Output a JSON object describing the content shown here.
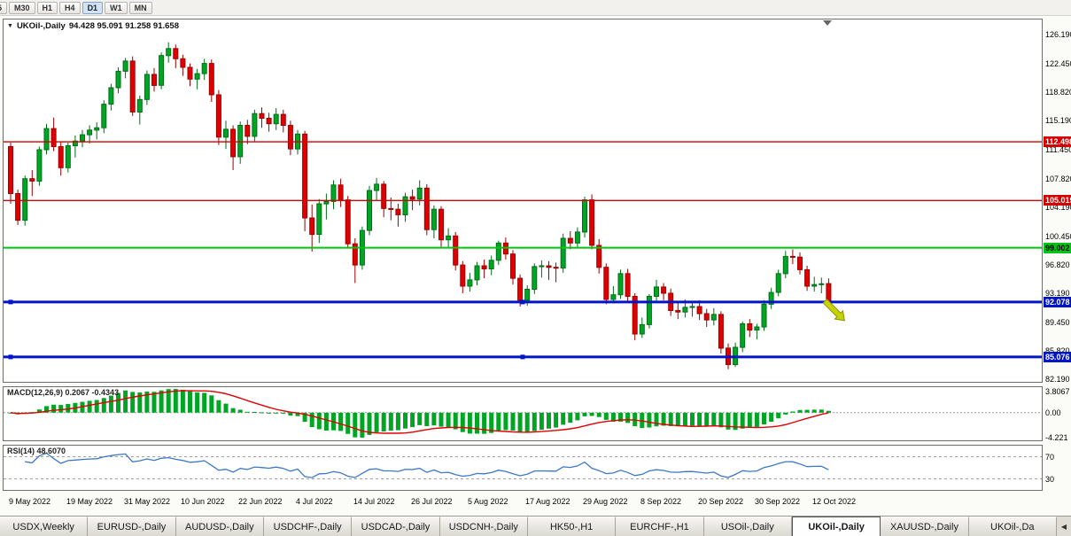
{
  "toolbar": {
    "period_buttons": [
      "5",
      "M30",
      "H1",
      "H4",
      "D1",
      "W1",
      "MN"
    ],
    "active_period": "D1"
  },
  "main_chart": {
    "collapse_icon": "▼",
    "title_symbol": "UKOil-,Daily",
    "title_ohlc": "94.428 95.091 91.258 91.658",
    "price_axis_labels": [
      "126.190",
      "122.450",
      "118.820",
      "115.190",
      "111.450",
      "107.820",
      "104.190",
      "100.450",
      "96.820",
      "93.190",
      "89.450",
      "85.820",
      "82.190"
    ],
    "hlines": [
      {
        "price": 112.498,
        "label": "112.498",
        "color": "#d40000",
        "width": 1.4,
        "text": "#fff",
        "handles": false
      },
      {
        "price": 105.019,
        "label": "105.019",
        "color": "#d40000",
        "width": 1.4,
        "text": "#fff",
        "handles": false
      },
      {
        "price": 99.002,
        "label": "99.002",
        "color": "#00c414",
        "width": 2,
        "text": "#000",
        "handles": false
      },
      {
        "price": 92.078,
        "label": "92.078",
        "color": "#0014c8",
        "width": 3,
        "text": "#fff",
        "handles": true
      },
      {
        "price": 85.076,
        "label": "85.076",
        "color": "#0014c8",
        "width": 3,
        "text": "#fff",
        "handles": true
      }
    ],
    "arrow": {
      "index": 113.5,
      "price": 92.2,
      "color": "#c6d300",
      "outline": "#85920a"
    },
    "up_color": "#00a524",
    "up_border": "#006e18",
    "down_color": "#e00000",
    "down_border": "#9c0000"
  },
  "chart_data": {
    "type": "candlestick",
    "symbol": "UKOil-,Daily",
    "timeframe": "Daily",
    "y_range": [
      82.19,
      126.19
    ],
    "x_tick_indices": [
      0,
      8,
      16,
      24,
      32,
      40,
      48,
      56,
      64,
      72,
      80,
      88,
      96,
      104,
      112
    ],
    "x_tick_labels": [
      "9 May 2022",
      "19 May 2022",
      "31 May 2022",
      "10 Jun 2022",
      "22 Jun 2022",
      "4 Jul 2022",
      "14 Jul 2022",
      "26 Jul 2022",
      "5 Aug 2022",
      "17 Aug 2022",
      "29 Aug 2022",
      "8 Sep 2022",
      "20 Sep 2022",
      "30 Sep 2022",
      "12 Oct 2022"
    ],
    "ohlc": [
      [
        111.9,
        112.4,
        104.6,
        105.9
      ],
      [
        105.9,
        106.4,
        101.9,
        102.5
      ],
      [
        102.5,
        108.2,
        101.8,
        107.8
      ],
      [
        107.8,
        108.9,
        105.6,
        107.5
      ],
      [
        107.5,
        111.9,
        106.9,
        111.5
      ],
      [
        111.5,
        114.8,
        110.9,
        114.2
      ],
      [
        114.2,
        115.6,
        111.3,
        111.9
      ],
      [
        111.9,
        112.5,
        108.2,
        109.2
      ],
      [
        109.2,
        112.4,
        108.6,
        112.0
      ],
      [
        112.0,
        113.3,
        110.5,
        112.6
      ],
      [
        112.6,
        114.0,
        111.8,
        113.4
      ],
      [
        113.4,
        114.6,
        112.3,
        114.0
      ],
      [
        114.0,
        115.0,
        112.8,
        114.3
      ],
      [
        114.3,
        117.8,
        113.6,
        117.3
      ],
      [
        117.3,
        119.9,
        116.5,
        119.4
      ],
      [
        119.4,
        122.0,
        118.7,
        121.5
      ],
      [
        121.5,
        123.2,
        120.6,
        122.8
      ],
      [
        122.8,
        123.4,
        115.8,
        116.3
      ],
      [
        116.3,
        118.4,
        114.7,
        117.9
      ],
      [
        117.9,
        121.6,
        117.2,
        121.1
      ],
      [
        121.1,
        121.9,
        118.9,
        119.7
      ],
      [
        119.7,
        123.9,
        119.2,
        123.5
      ],
      [
        123.5,
        125.2,
        122.6,
        124.4
      ],
      [
        124.4,
        124.9,
        121.9,
        123.1
      ],
      [
        123.1,
        123.6,
        120.9,
        122.0
      ],
      [
        122.0,
        122.5,
        119.6,
        120.5
      ],
      [
        120.5,
        121.8,
        119.2,
        121.2
      ],
      [
        121.2,
        123.1,
        120.4,
        122.5
      ],
      [
        122.5,
        123.0,
        117.6,
        118.5
      ],
      [
        118.5,
        119.1,
        112.1,
        113.1
      ],
      [
        113.1,
        115.2,
        111.6,
        114.1
      ],
      [
        114.1,
        114.6,
        108.9,
        110.6
      ],
      [
        110.6,
        115.1,
        109.7,
        114.6
      ],
      [
        114.6,
        115.3,
        112.2,
        113.2
      ],
      [
        113.2,
        116.6,
        112.5,
        116.1
      ],
      [
        116.1,
        116.9,
        114.3,
        115.5
      ],
      [
        115.5,
        116.2,
        113.8,
        114.8
      ],
      [
        114.8,
        116.8,
        114.0,
        116.0
      ],
      [
        116.0,
        116.6,
        113.7,
        114.6
      ],
      [
        114.6,
        115.2,
        110.8,
        111.6
      ],
      [
        111.6,
        114.0,
        110.9,
        113.5
      ],
      [
        113.5,
        113.9,
        101.1,
        102.8
      ],
      [
        102.8,
        104.5,
        98.5,
        100.7
      ],
      [
        100.7,
        105.2,
        99.6,
        104.6
      ],
      [
        104.6,
        105.9,
        102.6,
        104.9
      ],
      [
        104.9,
        107.6,
        103.9,
        107.0
      ],
      [
        107.0,
        107.8,
        104.2,
        105.1
      ],
      [
        105.1,
        105.6,
        98.9,
        99.5
      ],
      [
        99.5,
        100.2,
        94.5,
        96.8
      ],
      [
        96.8,
        101.7,
        96.2,
        101.2
      ],
      [
        101.2,
        106.9,
        100.6,
        106.3
      ],
      [
        106.3,
        107.9,
        105.1,
        107.1
      ],
      [
        107.1,
        107.5,
        102.9,
        104.0
      ],
      [
        104.0,
        105.4,
        102.5,
        103.9
      ],
      [
        103.9,
        104.6,
        101.7,
        103.2
      ],
      [
        103.2,
        106.0,
        102.3,
        105.5
      ],
      [
        105.5,
        106.4,
        103.8,
        105.2
      ],
      [
        105.2,
        107.6,
        104.4,
        106.6
      ],
      [
        106.6,
        107.1,
        100.6,
        101.3
      ],
      [
        101.3,
        104.4,
        100.2,
        103.9
      ],
      [
        103.9,
        104.3,
        99.1,
        100.0
      ],
      [
        100.0,
        101.5,
        98.9,
        100.5
      ],
      [
        100.5,
        101.0,
        96.1,
        96.8
      ],
      [
        96.8,
        97.3,
        93.2,
        94.1
      ],
      [
        94.1,
        95.8,
        93.4,
        94.9
      ],
      [
        94.9,
        97.2,
        94.2,
        96.7
      ],
      [
        96.7,
        97.5,
        95.1,
        96.3
      ],
      [
        96.3,
        98.0,
        95.5,
        97.4
      ],
      [
        97.4,
        99.9,
        96.8,
        99.6
      ],
      [
        99.6,
        100.3,
        97.5,
        98.2
      ],
      [
        98.2,
        98.7,
        94.3,
        95.1
      ],
      [
        95.1,
        95.6,
        91.5,
        92.3
      ],
      [
        92.3,
        94.2,
        91.6,
        93.7
      ],
      [
        93.7,
        97.0,
        93.1,
        96.6
      ],
      [
        96.6,
        97.4,
        95.2,
        96.7
      ],
      [
        96.7,
        97.3,
        94.9,
        96.5
      ],
      [
        96.5,
        97.1,
        94.6,
        96.4
      ],
      [
        96.4,
        100.8,
        95.8,
        100.2
      ],
      [
        100.2,
        101.1,
        98.8,
        99.6
      ],
      [
        99.6,
        101.6,
        98.9,
        101.0
      ],
      [
        101.0,
        105.5,
        100.3,
        105.1
      ],
      [
        105.1,
        105.8,
        98.8,
        99.3
      ],
      [
        99.3,
        100.1,
        95.7,
        96.5
      ],
      [
        96.5,
        97.0,
        91.8,
        92.4
      ],
      [
        92.4,
        94.1,
        91.9,
        93.0
      ],
      [
        93.0,
        96.2,
        92.5,
        95.7
      ],
      [
        95.7,
        96.3,
        92.1,
        92.8
      ],
      [
        92.8,
        93.2,
        87.2,
        88.0
      ],
      [
        88.0,
        90.1,
        87.5,
        89.2
      ],
      [
        89.2,
        93.1,
        88.7,
        92.8
      ],
      [
        92.8,
        94.9,
        92.2,
        94.0
      ],
      [
        94.0,
        94.5,
        92.3,
        93.2
      ],
      [
        93.2,
        93.8,
        90.3,
        91.0
      ],
      [
        91.0,
        92.1,
        89.9,
        90.8
      ],
      [
        90.8,
        92.4,
        90.1,
        91.4
      ],
      [
        91.4,
        92.0,
        90.2,
        91.5
      ],
      [
        91.5,
        92.3,
        89.8,
        90.6
      ],
      [
        90.6,
        91.2,
        88.9,
        89.8
      ],
      [
        89.8,
        91.3,
        89.1,
        90.5
      ],
      [
        90.5,
        90.9,
        85.5,
        86.2
      ],
      [
        86.2,
        86.8,
        83.5,
        84.1
      ],
      [
        84.1,
        86.9,
        83.8,
        86.3
      ],
      [
        86.3,
        89.6,
        85.7,
        89.3
      ],
      [
        89.3,
        89.9,
        87.6,
        88.5
      ],
      [
        88.5,
        89.3,
        87.3,
        88.9
      ],
      [
        88.9,
        92.3,
        88.4,
        91.8
      ],
      [
        91.8,
        93.9,
        91.2,
        93.3
      ],
      [
        93.3,
        96.2,
        92.8,
        95.7
      ],
      [
        95.7,
        98.6,
        95.1,
        97.9
      ],
      [
        97.9,
        98.8,
        96.9,
        97.8
      ],
      [
        97.8,
        98.4,
        95.6,
        96.2
      ],
      [
        96.2,
        96.7,
        93.5,
        94.1
      ],
      [
        94.1,
        95.3,
        93.4,
        94.3
      ],
      [
        94.3,
        95.2,
        93.2,
        94.4
      ],
      [
        94.428,
        95.091,
        91.258,
        91.658
      ]
    ]
  },
  "macd": {
    "label": "MACD(12,26,9) 0.2067 -0.4343",
    "fast": 12,
    "slow": 26,
    "signal": 9,
    "value": "0.2067",
    "signal_value": "-0.4343",
    "axis_labels": [
      "3.8067",
      "0.00",
      "-4.221"
    ],
    "hist_color": "#00a524",
    "signal_color": "#e00000"
  },
  "rsi": {
    "label": "RSI(14) 48.6070",
    "period": 14,
    "value": "48.6070",
    "level_labels": [
      "70",
      "30"
    ],
    "levels": [
      70,
      30
    ],
    "line_color": "#3c78c8",
    "range": [
      10,
      90
    ]
  },
  "tabs": {
    "items": [
      {
        "label": "USDX,Weekly"
      },
      {
        "label": "EURUSD-,Daily"
      },
      {
        "label": "AUDUSD-,Daily"
      },
      {
        "label": "USDCHF-,Daily"
      },
      {
        "label": "USDCAD-,Daily"
      },
      {
        "label": "USDCNH-,Daily"
      },
      {
        "label": "HK50-,H1"
      },
      {
        "label": "EURCHF-,H1"
      },
      {
        "label": "USOil-,Daily"
      },
      {
        "label": "UKOil-,Daily",
        "active": true
      },
      {
        "label": "XAUUSD-,Daily"
      },
      {
        "label": "UKOil-,Da"
      }
    ],
    "active": "UKOil-,Daily",
    "scroll_left_icon": "◀"
  }
}
